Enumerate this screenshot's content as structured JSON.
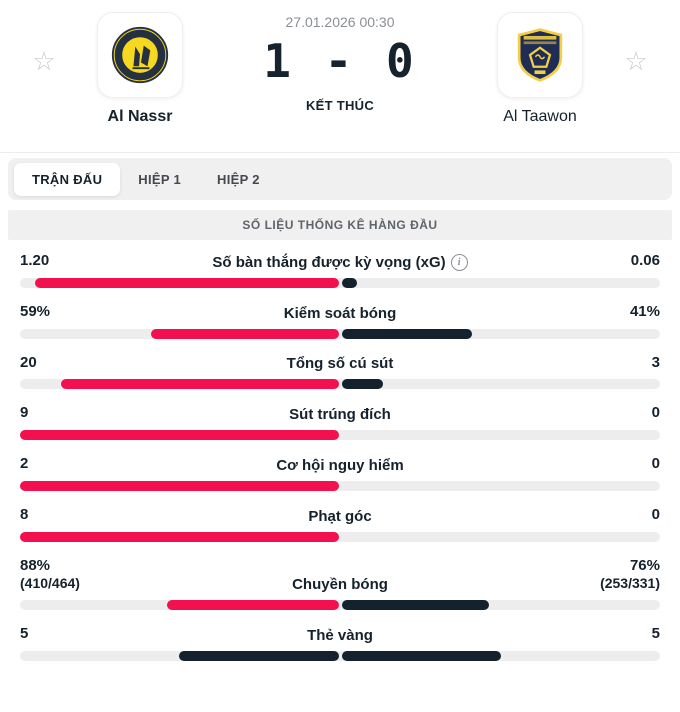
{
  "header": {
    "datetime": "27.01.2026 00:30",
    "score": "1 - 0",
    "status": "KẾT THÚC",
    "home_team": {
      "name": "Al Nassr"
    },
    "away_team": {
      "name": "Al Taawon"
    }
  },
  "tabs": [
    {
      "id": "tran-dau",
      "label": "TRẬN ĐẤU",
      "active": true
    },
    {
      "id": "hiep-1",
      "label": "HIỆP 1",
      "active": false
    },
    {
      "id": "hiep-2",
      "label": "HIỆP 2",
      "active": false
    }
  ],
  "section_title": "SỐ LIỆU THỐNG KÊ HÀNG ĐẦU",
  "colors": {
    "home_bar": "#f3104e",
    "away_bar": "#13222d",
    "track": "#ededed",
    "nassr_yellow": "#f6d820",
    "nassr_navy": "#253041",
    "taawon_navy": "#1f2d56",
    "taawon_gold": "#f2cf44"
  },
  "chart_data": {
    "type": "bar",
    "title": "SỐ LIỆU THỐNG KÊ HÀNG ĐẦU",
    "legend": [
      "Al Nassr",
      "Al Taawon"
    ],
    "rows": [
      {
        "label": "Số bàn thắng được kỳ vọng (xG)",
        "info": true,
        "home": "1.20",
        "away": "0.06",
        "home_val": 1.2,
        "away_val": 0.06,
        "home_share": 95.2,
        "away_share": 4.8,
        "home_color": "#f3104e",
        "away_color": "#13222d"
      },
      {
        "label": "Kiểm soát bóng",
        "home": "59%",
        "away": "41%",
        "home_val": 59,
        "away_val": 41,
        "home_share": 59,
        "away_share": 41,
        "home_color": "#f3104e",
        "away_color": "#13222d"
      },
      {
        "label": "Tổng số cú sút",
        "home": "20",
        "away": "3",
        "home_val": 20,
        "away_val": 3,
        "home_share": 87,
        "away_share": 13,
        "home_color": "#f3104e",
        "away_color": "#13222d"
      },
      {
        "label": "Sút trúng đích",
        "home": "9",
        "away": "0",
        "home_val": 9,
        "away_val": 0,
        "home_share": 100,
        "away_share": 0,
        "home_color": "#f3104e",
        "away_color": "#13222d"
      },
      {
        "label": "Cơ hội nguy hiểm",
        "home": "2",
        "away": "0",
        "home_val": 2,
        "away_val": 0,
        "home_share": 100,
        "away_share": 0,
        "home_color": "#f3104e",
        "away_color": "#13222d"
      },
      {
        "label": "Phạt góc",
        "home": "8",
        "away": "0",
        "home_val": 8,
        "away_val": 0,
        "home_share": 100,
        "away_share": 0,
        "home_color": "#f3104e",
        "away_color": "#13222d"
      },
      {
        "label": "Chuyền bóng",
        "home": "88%",
        "home_sub": "(410/464)",
        "away": "76%",
        "away_sub": "(253/331)",
        "home_val": 88,
        "away_val": 76,
        "home_share": 53.7,
        "away_share": 46.3,
        "home_color": "#f3104e",
        "away_color": "#13222d"
      },
      {
        "label": "Thẻ vàng",
        "home": "5",
        "away": "5",
        "home_val": 5,
        "away_val": 5,
        "home_share": 50,
        "away_share": 50,
        "home_color": "#13222d",
        "away_color": "#13222d"
      }
    ]
  }
}
